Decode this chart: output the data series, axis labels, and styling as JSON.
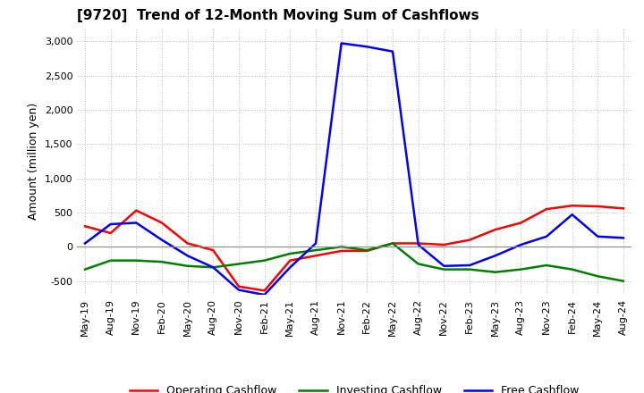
{
  "title": "[9720]  Trend of 12-Month Moving Sum of Cashflows",
  "ylabel": "Amount (million yen)",
  "ylim": [
    -700,
    3200
  ],
  "yticks": [
    -500,
    0,
    500,
    1000,
    1500,
    2000,
    2500,
    3000
  ],
  "background_color": "#ffffff",
  "grid_color": "#bbbbbb",
  "dates": [
    "May-19",
    "Aug-19",
    "Nov-19",
    "Feb-20",
    "May-20",
    "Aug-20",
    "Nov-20",
    "Feb-21",
    "May-21",
    "Aug-21",
    "Nov-21",
    "Feb-22",
    "May-22",
    "Aug-22",
    "Nov-22",
    "Feb-23",
    "May-23",
    "Aug-23",
    "Nov-23",
    "Feb-24",
    "May-24",
    "Aug-24"
  ],
  "operating_cashflow": [
    300,
    200,
    530,
    350,
    50,
    -50,
    -580,
    -640,
    -200,
    -130,
    -60,
    -60,
    50,
    50,
    30,
    100,
    250,
    350,
    550,
    600,
    590,
    560
  ],
  "investing_cashflow": [
    -330,
    -200,
    -200,
    -220,
    -280,
    -300,
    -250,
    -200,
    -100,
    -50,
    0,
    -50,
    50,
    -250,
    -330,
    -330,
    -370,
    -330,
    -270,
    -330,
    -430,
    -500
  ],
  "free_cashflow": [
    50,
    330,
    350,
    100,
    -130,
    -300,
    -630,
    -700,
    -300,
    50,
    2970,
    2920,
    2850,
    30,
    -280,
    -270,
    -130,
    30,
    150,
    470,
    150,
    130
  ],
  "operating_color": "#ff0000",
  "investing_color": "#008000",
  "free_color": "#0000ff",
  "legend_labels": [
    "Operating Cashflow",
    "Investing Cashflow",
    "Free Cashflow"
  ]
}
